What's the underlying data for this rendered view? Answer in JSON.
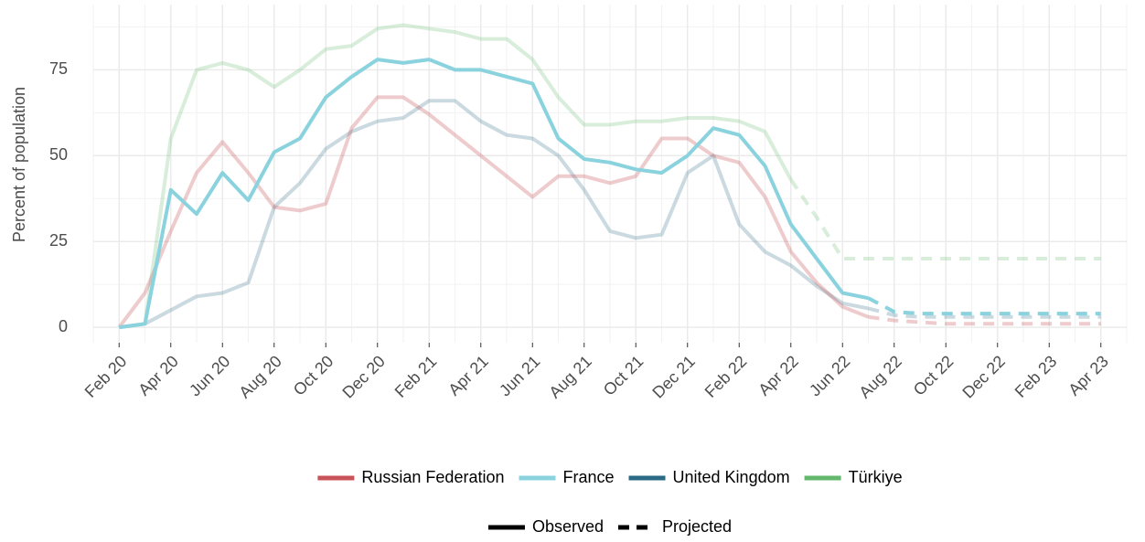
{
  "chart_data": {
    "type": "line",
    "y_label": "Percent of population",
    "x": [
      "2020-02",
      "2020-03",
      "2020-04",
      "2020-05",
      "2020-06",
      "2020-07",
      "2020-08",
      "2020-09",
      "2020-10",
      "2020-11",
      "2020-12",
      "2021-01",
      "2021-02",
      "2021-03",
      "2021-04",
      "2021-05",
      "2021-06",
      "2021-07",
      "2021-08",
      "2021-09",
      "2021-10",
      "2021-11",
      "2021-12",
      "2022-01",
      "2022-02",
      "2022-03",
      "2022-04",
      "2022-05",
      "2022-06",
      "2022-07",
      "2022-08",
      "2022-09",
      "2022-10",
      "2022-11",
      "2022-12",
      "2023-01",
      "2023-02",
      "2023-03",
      "2023-04"
    ],
    "xlim": [
      "2020-01",
      "2023-05"
    ],
    "xticks": [
      {
        "value": "2020-02",
        "label": "Feb 20"
      },
      {
        "value": "2020-04",
        "label": "Apr 20"
      },
      {
        "value": "2020-06",
        "label": "Jun 20"
      },
      {
        "value": "2020-08",
        "label": "Aug 20"
      },
      {
        "value": "2020-10",
        "label": "Oct 20"
      },
      {
        "value": "2020-12",
        "label": "Dec 20"
      },
      {
        "value": "2021-02",
        "label": "Feb 21"
      },
      {
        "value": "2021-04",
        "label": "Apr 21"
      },
      {
        "value": "2021-06",
        "label": "Jun 21"
      },
      {
        "value": "2021-08",
        "label": "Aug 21"
      },
      {
        "value": "2021-10",
        "label": "Oct 21"
      },
      {
        "value": "2021-12",
        "label": "Dec 21"
      },
      {
        "value": "2022-02",
        "label": "Feb 22"
      },
      {
        "value": "2022-04",
        "label": "Apr 22"
      },
      {
        "value": "2022-06",
        "label": "Jun 22"
      },
      {
        "value": "2022-08",
        "label": "Aug 22"
      },
      {
        "value": "2022-10",
        "label": "Oct 22"
      },
      {
        "value": "2022-12",
        "label": "Dec 22"
      },
      {
        "value": "2023-02",
        "label": "Feb 23"
      },
      {
        "value": "2023-04",
        "label": "Apr 23"
      }
    ],
    "ylim": [
      -4.5,
      94
    ],
    "yticks": [
      0,
      25,
      50,
      75
    ],
    "grid": true,
    "linetype_legend": [
      "Observed",
      "Projected"
    ],
    "series": [
      {
        "name": "Russian Federation",
        "color": "#c8545a",
        "opacity": 0.3,
        "values": [
          0,
          10,
          28,
          45,
          54,
          45,
          35,
          34,
          36,
          58,
          67,
          67,
          62,
          56,
          50,
          44,
          38,
          44,
          44,
          42,
          44,
          55,
          55,
          50,
          48,
          38,
          22,
          13,
          6,
          3,
          null,
          null,
          null,
          null,
          null,
          null,
          null,
          null,
          null
        ],
        "projected_values": [
          null,
          null,
          null,
          null,
          null,
          null,
          null,
          null,
          null,
          null,
          null,
          null,
          null,
          null,
          null,
          null,
          null,
          null,
          null,
          null,
          null,
          null,
          null,
          null,
          null,
          null,
          null,
          null,
          null,
          3,
          2,
          1.5,
          1,
          1,
          1,
          1,
          1,
          1,
          1
        ]
      },
      {
        "name": "France",
        "color": "#8ad3de",
        "opacity": 1,
        "values": [
          0,
          1,
          40,
          33,
          45,
          37,
          51,
          55,
          67,
          73,
          78,
          77,
          78,
          75,
          75,
          73,
          71,
          55,
          49,
          48,
          46,
          45,
          50,
          58,
          56,
          47,
          30,
          20,
          10,
          8.5,
          null,
          null,
          null,
          null,
          null,
          null,
          null,
          null,
          null
        ],
        "projected_values": [
          null,
          null,
          null,
          null,
          null,
          null,
          null,
          null,
          null,
          null,
          null,
          null,
          null,
          null,
          null,
          null,
          null,
          null,
          null,
          null,
          null,
          null,
          null,
          null,
          null,
          null,
          null,
          null,
          null,
          8.5,
          4.5,
          4,
          4,
          4,
          4,
          4,
          4,
          4,
          4
        ]
      },
      {
        "name": "United Kingdom",
        "color": "#2a6a84",
        "opacity": 0.25,
        "values": [
          0,
          1,
          5,
          9,
          10,
          13,
          35,
          42,
          52,
          57,
          60,
          61,
          66,
          66,
          60,
          56,
          55,
          50,
          40,
          28,
          26,
          27,
          45,
          50,
          30,
          22,
          18,
          12,
          7,
          5.5,
          null,
          null,
          null,
          null,
          null,
          null,
          null,
          null,
          null
        ],
        "projected_values": [
          null,
          null,
          null,
          null,
          null,
          null,
          null,
          null,
          null,
          null,
          null,
          null,
          null,
          null,
          null,
          null,
          null,
          null,
          null,
          null,
          null,
          null,
          null,
          null,
          null,
          null,
          null,
          null,
          null,
          5.5,
          3.5,
          3,
          3,
          3,
          3,
          3,
          3,
          3,
          3
        ]
      },
      {
        "name": "Türkiye",
        "color": "#63b86d",
        "opacity": 0.25,
        "values": [
          0,
          1,
          55,
          75,
          77,
          75,
          70,
          75,
          81,
          82,
          87,
          88,
          87,
          86,
          84,
          84,
          78,
          67,
          59,
          59,
          60,
          60,
          61,
          61,
          60,
          57,
          43,
          null,
          null,
          null,
          null,
          null,
          null,
          null,
          null,
          null,
          null,
          null,
          null
        ],
        "projected_values": [
          null,
          null,
          null,
          null,
          null,
          null,
          null,
          null,
          null,
          null,
          null,
          null,
          null,
          null,
          null,
          null,
          null,
          null,
          null,
          null,
          null,
          null,
          null,
          null,
          null,
          null,
          43,
          32,
          20,
          20,
          20,
          20,
          20,
          20,
          20,
          20,
          20,
          20,
          20
        ]
      }
    ]
  }
}
